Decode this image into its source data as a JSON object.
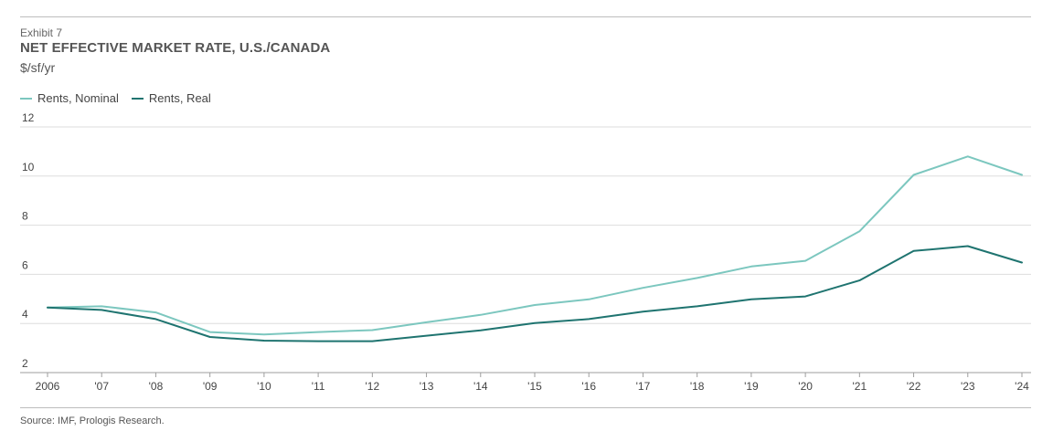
{
  "header": {
    "exhibit": "Exhibit 7",
    "title": "NET EFFECTIVE MARKET RATE, U.S./CANADA",
    "unit": "$/sf/yr"
  },
  "source": "Source: IMF, Prologis Research.",
  "colors": {
    "nominal": "#7cc7bf",
    "real": "#1f7470",
    "grid": "#dddddd",
    "rule": "#bdbdbd"
  },
  "chart_data": {
    "type": "line",
    "title": "NET EFFECTIVE MARKET RATE, U.S./CANADA",
    "ylabel": "$/sf/yr",
    "xlabel": "",
    "categories": [
      "2006",
      "'07",
      "'08",
      "'09",
      "'10",
      "'11",
      "'12",
      "'13",
      "'14",
      "'15",
      "'16",
      "'17",
      "'18",
      "'19",
      "'20",
      "'21",
      "'22",
      "'23",
      "'24"
    ],
    "yticks": [
      "2",
      "4",
      "6",
      "8",
      "10",
      "12"
    ],
    "ylim": [
      2,
      12
    ],
    "grid": true,
    "legend_position": "top-left",
    "series": [
      {
        "name": "Rents, Nominal",
        "values": [
          4.65,
          4.7,
          4.45,
          3.65,
          3.55,
          3.65,
          3.73,
          4.05,
          4.35,
          4.75,
          4.98,
          5.45,
          5.85,
          6.32,
          6.55,
          7.75,
          10.05,
          10.8,
          10.05
        ]
      },
      {
        "name": "Rents, Real",
        "values": [
          4.65,
          4.55,
          4.18,
          3.45,
          3.3,
          3.28,
          3.28,
          3.5,
          3.72,
          4.02,
          4.18,
          4.48,
          4.7,
          4.98,
          5.1,
          5.75,
          6.95,
          7.15,
          6.48
        ]
      }
    ]
  }
}
